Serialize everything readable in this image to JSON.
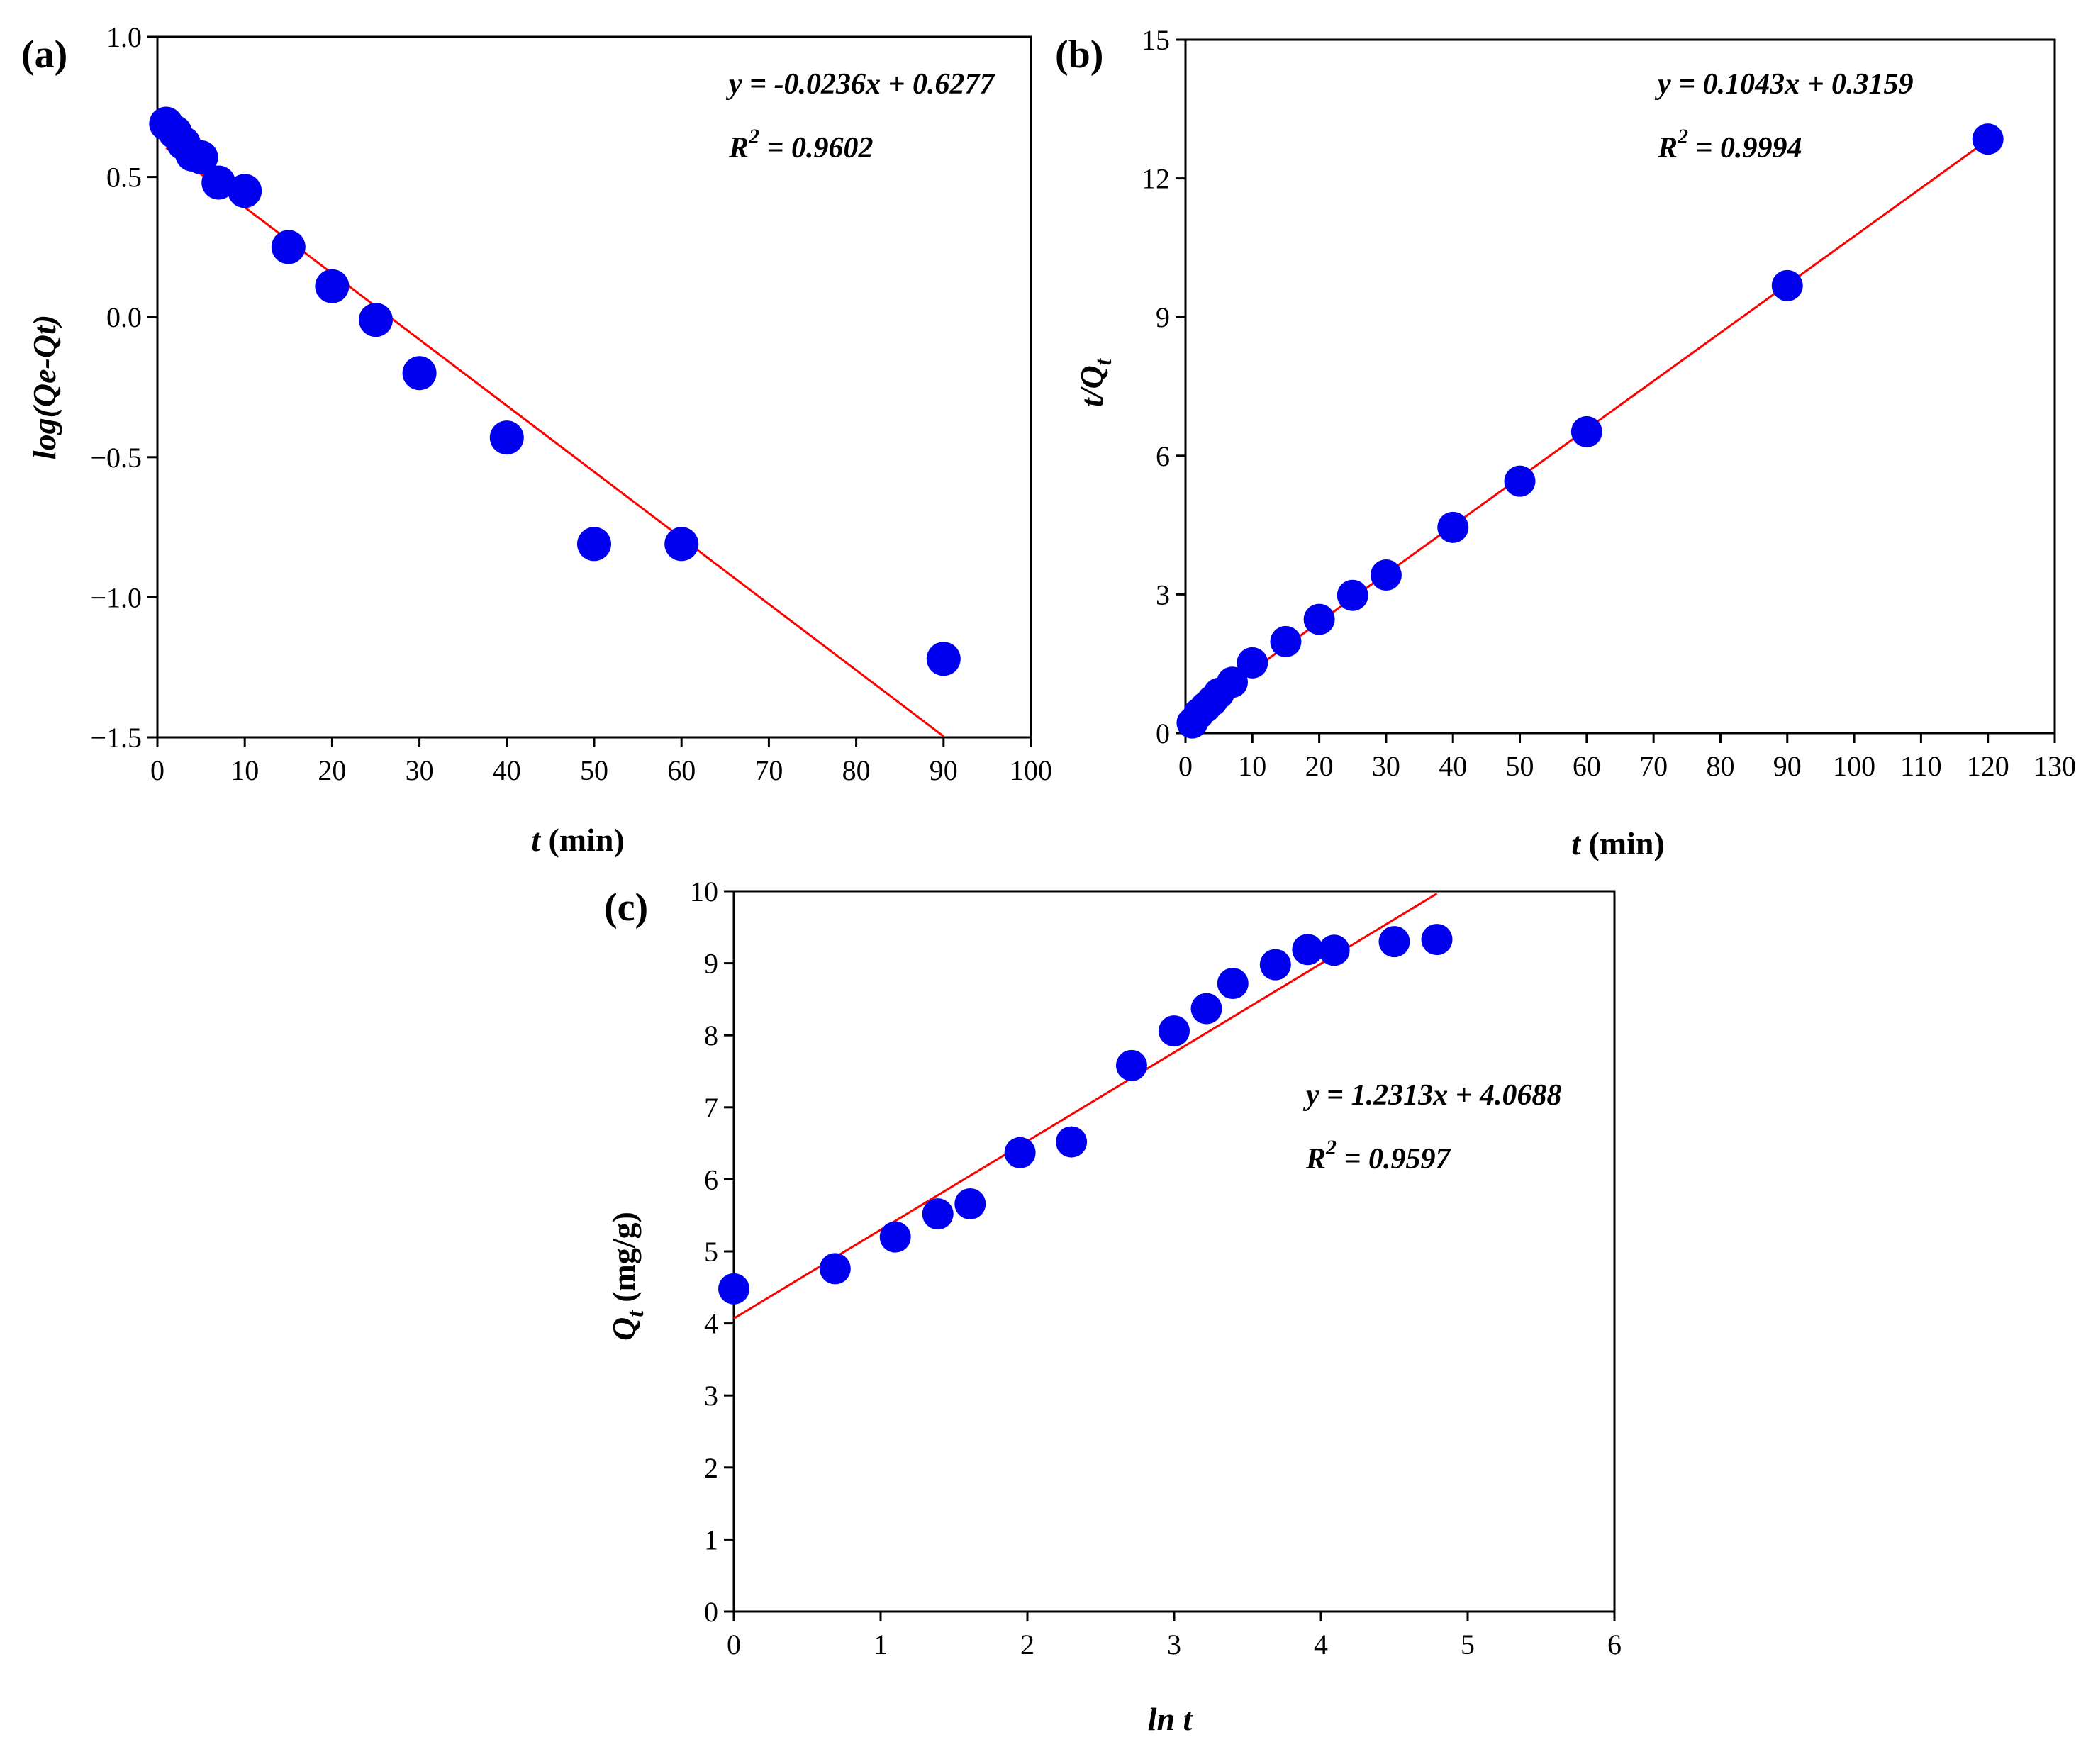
{
  "chart_data": [
    {
      "type": "scatter",
      "panel_label": "(a)",
      "title": "",
      "xlabel_italic": "t",
      "xlabel_rest": " (min)",
      "ylabel": "log(Qe-Qt)",
      "xlim": [
        0,
        100
      ],
      "ylim": [
        -1.5,
        1.0
      ],
      "xticks": [
        0,
        10,
        20,
        30,
        40,
        50,
        60,
        70,
        80,
        90,
        100
      ],
      "yticks": [
        1.0,
        0.5,
        0.0,
        -0.5,
        -1.0,
        -1.5
      ],
      "ytick_labels": [
        "1.0",
        "0.5",
        "0.0",
        "−0.5",
        "−1.0",
        "−1.5"
      ],
      "grid": false,
      "series": [
        {
          "name": "data",
          "color": "#0000ee",
          "x": [
            1,
            2,
            3,
            4,
            5,
            7,
            10,
            15,
            20,
            25,
            30,
            40,
            50,
            60,
            90
          ],
          "y": [
            0.69,
            0.66,
            0.62,
            0.58,
            0.57,
            0.48,
            0.45,
            0.25,
            0.11,
            -0.01,
            -0.2,
            -0.43,
            -0.81,
            -0.81,
            -1.22
          ]
        }
      ],
      "fit": {
        "slope": -0.0236,
        "intercept": 0.6277,
        "x_range": [
          1,
          90
        ],
        "color": "#ff0000"
      },
      "equation": "y = -0.0236x + 0.6277",
      "r2_prefix": "R",
      "r2_sup": "2",
      "r2_value": " = 0.9602"
    },
    {
      "type": "scatter",
      "panel_label": "(b)",
      "title": "",
      "xlabel_italic": "t",
      "xlabel_rest": " (min)",
      "ylabel": "t/Q",
      "ylabel_sub": "t",
      "xlim": [
        0,
        130
      ],
      "ylim": [
        0,
        15
      ],
      "xticks": [
        0,
        10,
        20,
        30,
        40,
        50,
        60,
        70,
        80,
        90,
        100,
        110,
        120,
        130
      ],
      "yticks": [
        0,
        3,
        6,
        9,
        12,
        15
      ],
      "ytick_labels": [
        "0",
        "3",
        "6",
        "9",
        "12",
        "15"
      ],
      "grid": false,
      "series": [
        {
          "name": "data",
          "color": "#0000ee",
          "x": [
            1,
            2,
            3,
            4,
            5,
            7,
            10,
            15,
            20,
            25,
            30,
            40,
            50,
            60,
            90,
            120
          ],
          "y": [
            0.22,
            0.42,
            0.56,
            0.7,
            0.86,
            1.1,
            1.52,
            1.98,
            2.46,
            2.98,
            3.42,
            4.45,
            5.45,
            6.52,
            9.68,
            12.85
          ]
        }
      ],
      "fit": {
        "slope": 0.1043,
        "intercept": 0.3159,
        "x_range": [
          1,
          120
        ],
        "color": "#ff0000"
      },
      "equation": "y = 0.1043x + 0.3159",
      "r2_prefix": "R",
      "r2_sup": "2",
      "r2_value": " = 0.9994"
    },
    {
      "type": "scatter",
      "panel_label": "(c)",
      "title": "",
      "xlabel_italic": "ln t",
      "xlabel_rest": "",
      "ylabel": "Q",
      "ylabel_sub": "t",
      "ylabel_rest": " (mg/g)",
      "xlim": [
        0,
        6
      ],
      "ylim": [
        0,
        10
      ],
      "xticks": [
        0,
        1,
        2,
        3,
        4,
        5,
        6
      ],
      "yticks": [
        0,
        1,
        2,
        3,
        4,
        5,
        6,
        7,
        8,
        9,
        10
      ],
      "ytick_labels": [
        "0",
        "1",
        "2",
        "3",
        "4",
        "5",
        "6",
        "7",
        "8",
        "9",
        "10"
      ],
      "grid": false,
      "series": [
        {
          "name": "data",
          "color": "#0000ee",
          "x": [
            0,
            0.69,
            1.1,
            1.39,
            1.61,
            1.95,
            2.3,
            2.71,
            3.0,
            3.22,
            3.4,
            3.69,
            3.91,
            4.09,
            4.5,
            4.79
          ],
          "y": [
            4.48,
            4.76,
            5.2,
            5.52,
            5.66,
            6.37,
            6.52,
            7.58,
            8.06,
            8.37,
            8.72,
            8.98,
            9.19,
            9.18,
            9.3,
            9.33
          ]
        }
      ],
      "fit": {
        "slope": 1.2313,
        "intercept": 4.0688,
        "x_range": [
          0,
          4.79
        ],
        "color": "#ff0000"
      },
      "equation": "y = 1.2313x + 4.0688",
      "r2_prefix": "R",
      "r2_sup": "2",
      "r2_value": " = 0.9597"
    }
  ]
}
